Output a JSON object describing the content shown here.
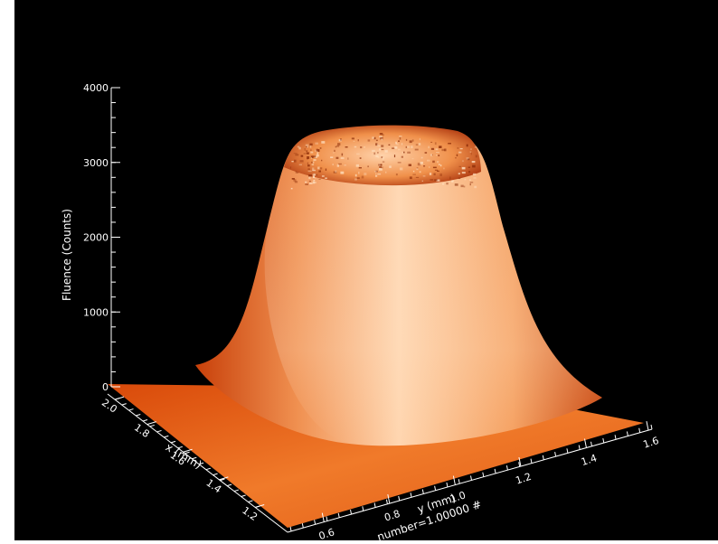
{
  "chart_data": {
    "type": "surface",
    "zlabel": "Fluence (Counts)",
    "xlabel": "x (mm)",
    "ylabel": "y (mm)",
    "annotation": "number=1.00000 #",
    "zlim": [
      0,
      4000
    ],
    "z_ticks": [
      "0",
      "1000",
      "2000",
      "3000",
      "4000"
    ],
    "x_ticks": [
      "1.2",
      "1.4",
      "1.6",
      "1.8",
      "2.0"
    ],
    "y_ticks": [
      "0.6",
      "0.8",
      "1.0",
      "1.2",
      "1.4",
      "1.6"
    ],
    "surface": {
      "shape": "flat-topped gaussian beam profile",
      "base_level": 0,
      "peak_level": 3400,
      "peak_location_mm": {
        "x": 1.6,
        "y": 1.1
      },
      "colormap": "orange (dark red → orange → pale peach)"
    },
    "grid": false,
    "background": "#000000"
  }
}
